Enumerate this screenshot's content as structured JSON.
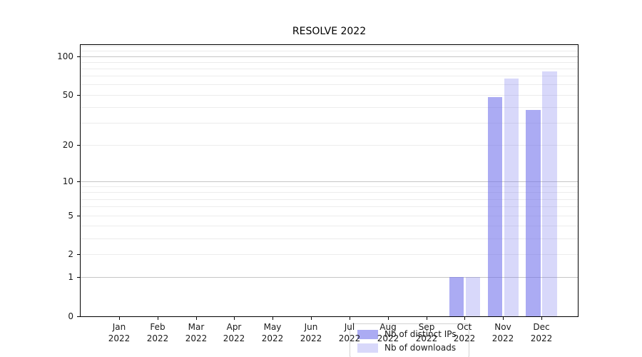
{
  "chart_data": {
    "type": "bar",
    "title": "RESOLVE 2022",
    "scale": "log1p",
    "ylim": [
      0,
      122
    ],
    "grid": true,
    "yticks": [
      0,
      1,
      2,
      5,
      10,
      20,
      50,
      100
    ],
    "ytick_labels": [
      "0",
      "1",
      "2",
      "5",
      "10",
      "20",
      "50",
      "100"
    ],
    "major_gridlines": [
      1,
      10,
      100
    ],
    "minor_gridlines": [
      2,
      3,
      4,
      5,
      6,
      7,
      8,
      9,
      20,
      30,
      40,
      50,
      60,
      70,
      80,
      90,
      110,
      120
    ],
    "categories": [
      "Jan",
      "Feb",
      "Mar",
      "Apr",
      "May",
      "Jun",
      "Jul",
      "Aug",
      "Sep",
      "Oct",
      "Nov",
      "Dec"
    ],
    "category_year": "2022",
    "xlabel": "",
    "ylabel": "",
    "legend_position": "lower center",
    "series": [
      {
        "name": "Nb of distinct IPs",
        "color": "rgba(110,110,235,0.58)",
        "values": [
          0,
          0,
          0,
          0,
          0,
          0,
          0,
          0,
          0,
          1,
          48,
          38
        ]
      },
      {
        "name": "Nb of downloads",
        "color": "rgba(110,110,235,0.27)",
        "values": [
          0,
          0,
          0,
          0,
          0,
          0,
          0,
          0,
          0,
          1,
          67,
          76
        ]
      }
    ]
  },
  "colors": {
    "bar_base": "#6e6eeb",
    "major_grid": "#c6c6c6",
    "minor_grid": "#ececec",
    "spine": "#000000",
    "legend_border": "#d2d2d2"
  }
}
